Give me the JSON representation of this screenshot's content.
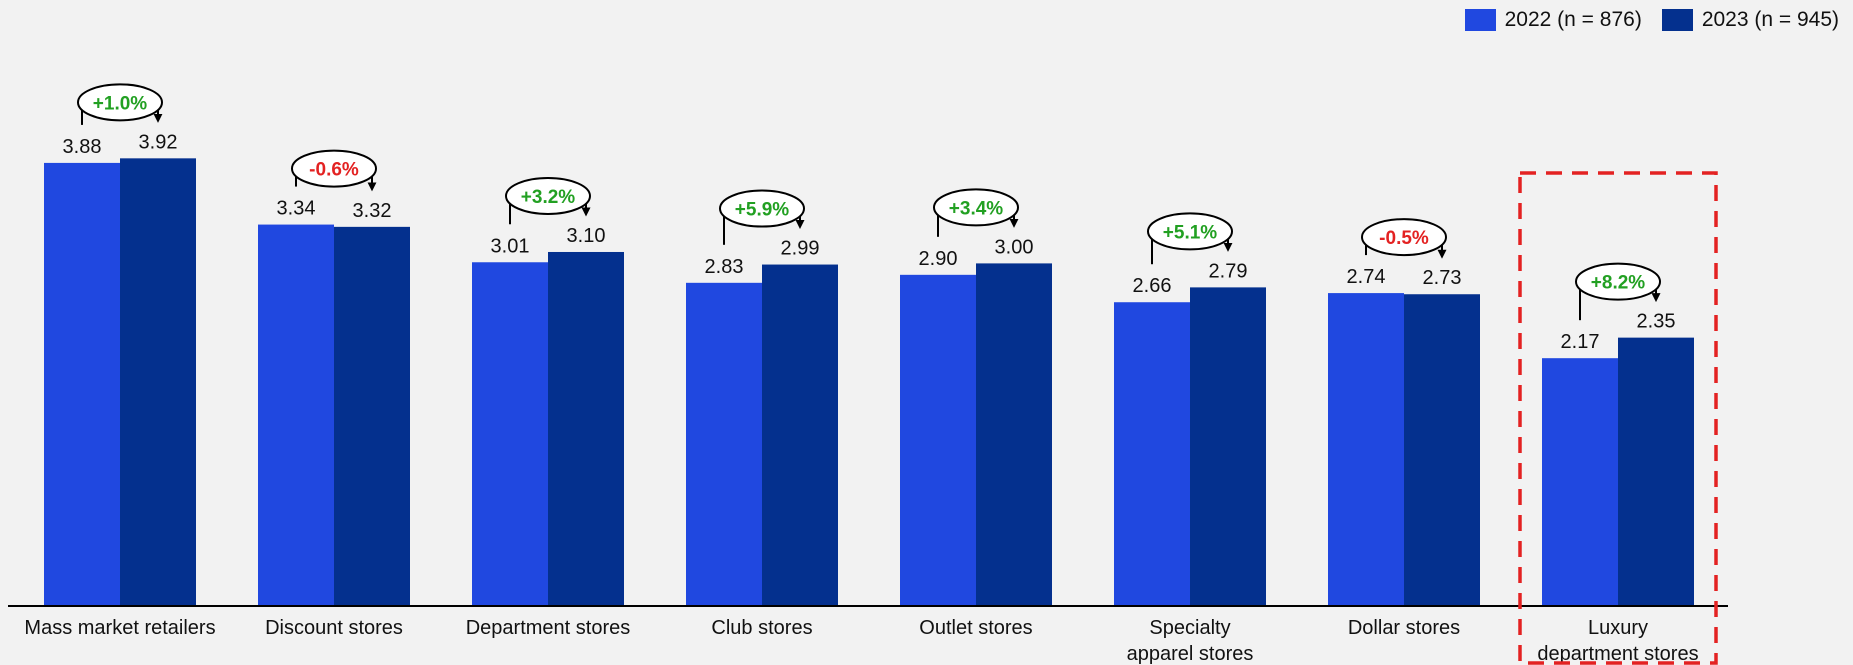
{
  "colors": {
    "series_2022": "#2048e0",
    "series_2023": "#04308e",
    "positive_change": "#22a022",
    "negative_change": "#e32222",
    "highlight_box": "#e32222",
    "axis": "#000000",
    "background": "#f2f2f2"
  },
  "legend": [
    {
      "label": "2022 (n = 876)",
      "color": "#2048e0"
    },
    {
      "label": "2023 (n = 945)",
      "color": "#04308e"
    }
  ],
  "chart_data": {
    "type": "bar",
    "legend_position": "top-right",
    "grid": false,
    "ylim": [
      0,
      4.4
    ],
    "title": "",
    "xlabel": "",
    "ylabel": "",
    "categories": [
      [
        "Mass market retailers"
      ],
      [
        "Discount stores"
      ],
      [
        "Department stores"
      ],
      [
        "Club stores"
      ],
      [
        "Outlet stores"
      ],
      [
        "Specialty",
        "apparel stores"
      ],
      [
        "Dollar stores"
      ],
      [
        "Luxury",
        "department stores"
      ]
    ],
    "series": [
      {
        "name": "2022 (n = 876)",
        "values": [
          3.88,
          3.34,
          3.01,
          2.83,
          2.9,
          2.66,
          2.74,
          2.17
        ],
        "labels": [
          "3.88",
          "3.34",
          "3.01",
          "2.83",
          "2.90",
          "2.66",
          "2.74",
          "2.17"
        ]
      },
      {
        "name": "2023 (n = 945)",
        "values": [
          3.92,
          3.32,
          3.1,
          2.99,
          3.0,
          2.79,
          2.73,
          2.35
        ],
        "labels": [
          "3.92",
          "3.32",
          "3.10",
          "2.99",
          "3.00",
          "2.79",
          "2.73",
          "2.35"
        ]
      }
    ],
    "annotations": [
      {
        "category_index": 0,
        "text": "+1.0%",
        "direction": "positive"
      },
      {
        "category_index": 1,
        "text": "-0.6%",
        "direction": "negative"
      },
      {
        "category_index": 2,
        "text": "+3.2%",
        "direction": "positive"
      },
      {
        "category_index": 3,
        "text": "+5.9%",
        "direction": "positive"
      },
      {
        "category_index": 4,
        "text": "+3.4%",
        "direction": "positive"
      },
      {
        "category_index": 5,
        "text": "+5.1%",
        "direction": "positive"
      },
      {
        "category_index": 6,
        "text": "-0.5%",
        "direction": "negative"
      },
      {
        "category_index": 7,
        "text": "+8.2%",
        "direction": "positive"
      }
    ],
    "highlighted_category_index": 7
  }
}
